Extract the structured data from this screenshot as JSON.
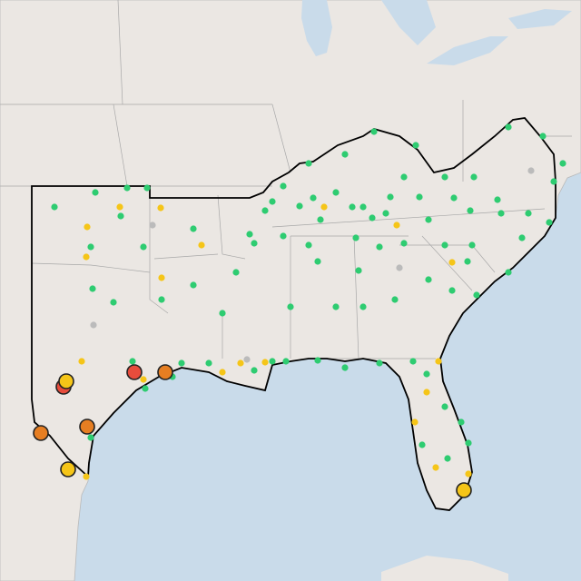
{
  "map": {
    "lon_range": [
      -101.2,
      -75.6
    ],
    "lat_range": [
      46,
      20.4
    ],
    "groups": [
      {
        "color": "#2ecc71",
        "outlined": false,
        "points": [
          [
            -98.8,
            36.88
          ],
          [
            -97.0,
            37.52
          ],
          [
            -95.6,
            37.72
          ],
          [
            -94.72,
            37.72
          ],
          [
            -95.88,
            36.48
          ],
          [
            -97.2,
            35.12
          ],
          [
            -94.88,
            35.12
          ],
          [
            -92.68,
            35.92
          ],
          [
            -89.2,
            37.12
          ],
          [
            -88.72,
            37.8
          ],
          [
            -87.6,
            38.8
          ],
          [
            -86.0,
            39.2
          ],
          [
            -84.72,
            40.2
          ],
          [
            -82.88,
            39.6
          ],
          [
            -83.4,
            38.2
          ],
          [
            -81.6,
            38.2
          ],
          [
            -80.32,
            38.2
          ],
          [
            -78.8,
            40.4
          ],
          [
            -77.28,
            40.0
          ],
          [
            -76.8,
            38.0
          ],
          [
            -76.4,
            38.8
          ],
          [
            -87.4,
            37.28
          ],
          [
            -86.4,
            37.52
          ],
          [
            -85.2,
            36.88
          ],
          [
            -84.0,
            37.32
          ],
          [
            -82.72,
            37.32
          ],
          [
            -81.2,
            37.28
          ],
          [
            -79.28,
            37.2
          ],
          [
            -90.2,
            35.68
          ],
          [
            -89.52,
            36.72
          ],
          [
            -88.0,
            36.92
          ],
          [
            -87.08,
            36.32
          ],
          [
            -85.68,
            36.88
          ],
          [
            -84.8,
            36.4
          ],
          [
            -84.2,
            36.6
          ],
          [
            -82.32,
            36.32
          ],
          [
            -80.48,
            36.72
          ],
          [
            -79.12,
            36.6
          ],
          [
            -77.92,
            36.6
          ],
          [
            -77.0,
            36.2
          ],
          [
            -90.0,
            35.28
          ],
          [
            -88.72,
            35.6
          ],
          [
            -87.6,
            35.2
          ],
          [
            -85.52,
            35.52
          ],
          [
            -84.48,
            35.12
          ],
          [
            -83.4,
            35.28
          ],
          [
            -81.6,
            35.2
          ],
          [
            -80.4,
            35.2
          ],
          [
            -78.2,
            35.52
          ],
          [
            -90.8,
            34.0
          ],
          [
            -87.2,
            34.48
          ],
          [
            -85.4,
            34.08
          ],
          [
            -82.32,
            33.68
          ],
          [
            -80.6,
            34.48
          ],
          [
            -78.8,
            34.0
          ],
          [
            -97.12,
            33.28
          ],
          [
            -96.2,
            32.68
          ],
          [
            -94.08,
            32.8
          ],
          [
            -92.68,
            33.44
          ],
          [
            -91.4,
            32.2
          ],
          [
            -88.4,
            32.48
          ],
          [
            -86.4,
            32.48
          ],
          [
            -85.2,
            32.48
          ],
          [
            -83.8,
            32.8
          ],
          [
            -81.28,
            33.2
          ],
          [
            -80.2,
            33.0
          ],
          [
            -93.2,
            30.0
          ],
          [
            -92.0,
            30.0
          ],
          [
            -89.2,
            30.08
          ],
          [
            -88.6,
            30.08
          ],
          [
            -87.2,
            30.12
          ],
          [
            -86.0,
            29.8
          ],
          [
            -84.48,
            30.0
          ],
          [
            -83.0,
            30.08
          ],
          [
            -82.4,
            29.52
          ],
          [
            -81.6,
            28.08
          ],
          [
            -80.88,
            27.4
          ],
          [
            -80.56,
            26.48
          ],
          [
            -81.48,
            25.8
          ],
          [
            -82.6,
            26.4
          ],
          [
            -95.36,
            30.08
          ],
          [
            -93.6,
            29.4
          ],
          [
            -94.8,
            28.88
          ],
          [
            -97.2,
            26.72
          ],
          [
            -90.0,
            29.68
          ]
        ]
      },
      {
        "color": "#f5c518",
        "outlined": false,
        "points": [
          [
            -97.36,
            36.0
          ],
          [
            -97.4,
            34.68
          ],
          [
            -95.92,
            36.88
          ],
          [
            -94.12,
            36.84
          ],
          [
            -92.32,
            35.2
          ],
          [
            -94.08,
            33.76
          ],
          [
            -97.6,
            30.08
          ],
          [
            -91.4,
            29.6
          ],
          [
            -90.6,
            30.0
          ],
          [
            -89.52,
            30.04
          ],
          [
            -86.92,
            36.88
          ],
          [
            -83.72,
            36.08
          ],
          [
            -81.28,
            34.44
          ],
          [
            -81.88,
            30.08
          ],
          [
            -82.4,
            28.72
          ],
          [
            -82.92,
            27.4
          ],
          [
            -82.0,
            25.4
          ],
          [
            -80.56,
            25.12
          ],
          [
            -97.4,
            25.0
          ],
          [
            -94.88,
            29.28
          ]
        ]
      },
      {
        "color": "#bbbbbb",
        "outlined": false,
        "points": [
          [
            -94.48,
            36.08
          ],
          [
            -97.08,
            31.68
          ],
          [
            -83.6,
            34.2
          ],
          [
            -77.8,
            38.48
          ],
          [
            -90.32,
            30.16
          ]
        ]
      },
      {
        "color": "#e74c3c",
        "outlined": true,
        "points": [
          [
            -95.28,
            29.6
          ],
          [
            -98.4,
            28.96
          ]
        ]
      },
      {
        "color": "#f5c518",
        "outlined": true,
        "points": [
          [
            -98.28,
            29.2
          ],
          [
            -98.2,
            25.32
          ],
          [
            -80.76,
            24.4
          ]
        ]
      },
      {
        "color": "#e67e22",
        "outlined": true,
        "points": [
          [
            -93.92,
            29.6
          ],
          [
            -97.36,
            27.2
          ],
          [
            -99.4,
            26.92
          ]
        ]
      }
    ]
  }
}
